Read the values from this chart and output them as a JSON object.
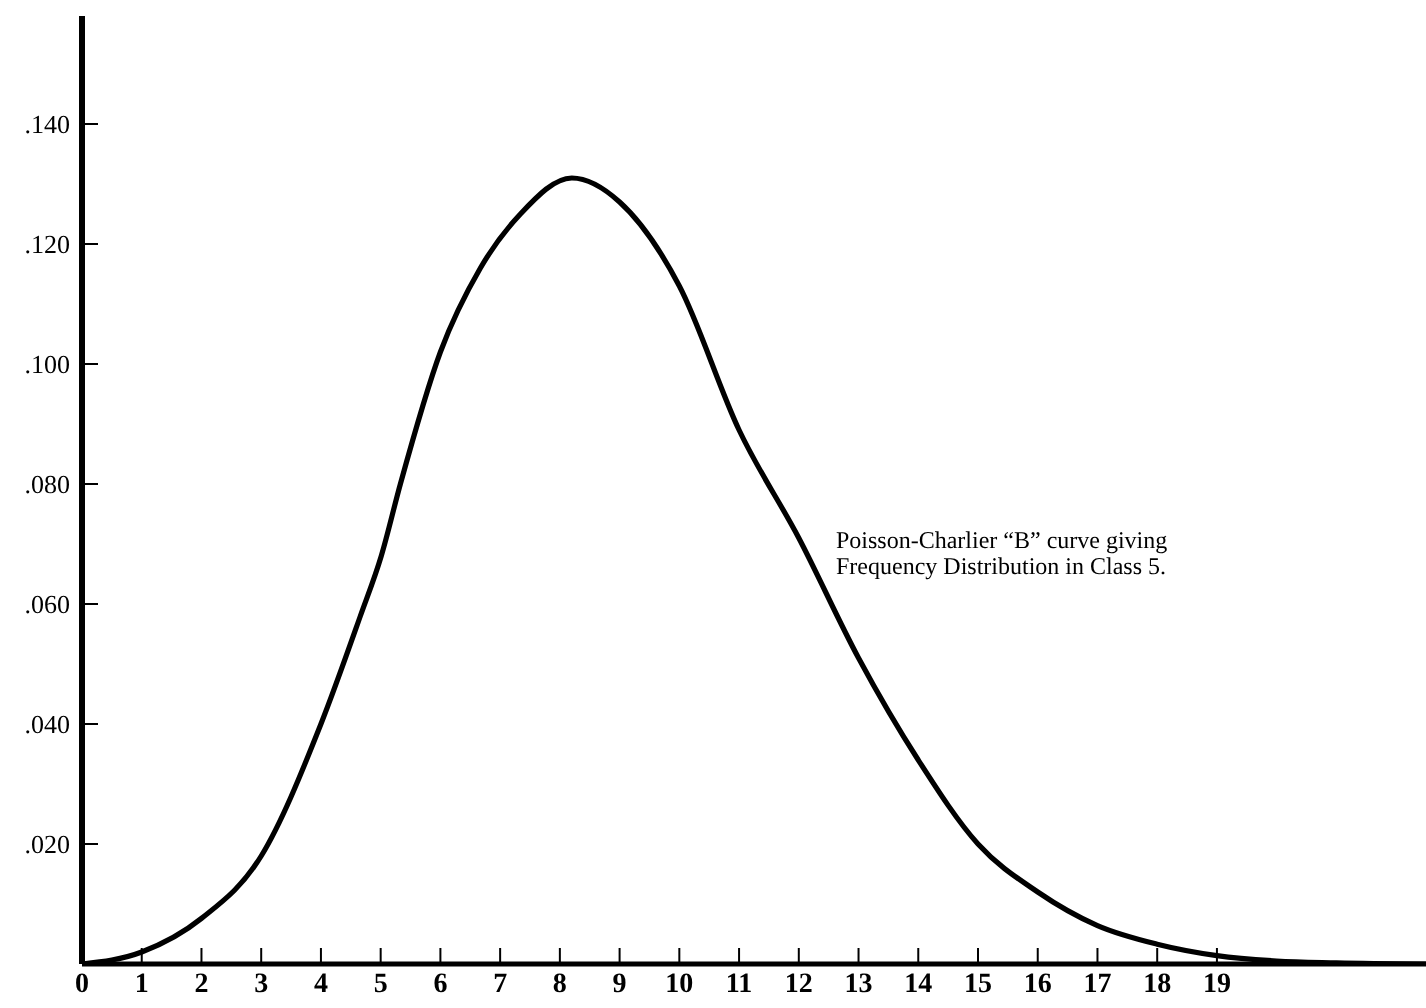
{
  "chart_data": {
    "type": "line",
    "x": [
      0,
      1,
      2,
      3,
      4,
      4.66,
      5.01,
      5.33,
      6,
      6.67,
      7.34,
      8.2,
      9,
      10,
      11,
      12,
      13,
      14,
      15,
      16,
      17,
      18,
      19,
      20,
      21,
      22.5
    ],
    "series": [
      {
        "color": "#000000",
        "values": [
          0,
          0.002,
          0.0076,
          0.018,
          0.04,
          0.058,
          0.068,
          0.08,
          0.102,
          0.116,
          0.125,
          0.131,
          0.127,
          0.113,
          0.089,
          0.071,
          0.051,
          0.034,
          0.02,
          0.012,
          0.0064,
          0.0033,
          0.0014,
          0.0005,
          0.0002,
          0
        ]
      }
    ],
    "xlim": [
      0,
      22.5
    ],
    "ylim": [
      0,
      0.158
    ],
    "xticks": [
      0,
      1,
      2,
      3,
      4,
      5,
      6,
      7,
      8,
      9,
      10,
      11,
      12,
      13,
      14,
      15,
      16,
      17,
      18,
      19
    ],
    "yticks": [
      {
        "value": 0.02,
        "label": ".020"
      },
      {
        "value": 0.04,
        "label": ".040"
      },
      {
        "value": 0.06,
        "label": ".060"
      },
      {
        "value": 0.08,
        "label": ".080"
      },
      {
        "value": 0.1,
        "label": ".100"
      },
      {
        "value": 0.12,
        "label": ".120"
      },
      {
        "value": 0.14,
        "label": ".140"
      }
    ],
    "annotations": [
      "Poisson-Charlier “B” curve giving\nFrequency Distribution in Class 5."
    ],
    "grid": false,
    "legend": false,
    "marker": "none",
    "line_style": "solid"
  }
}
